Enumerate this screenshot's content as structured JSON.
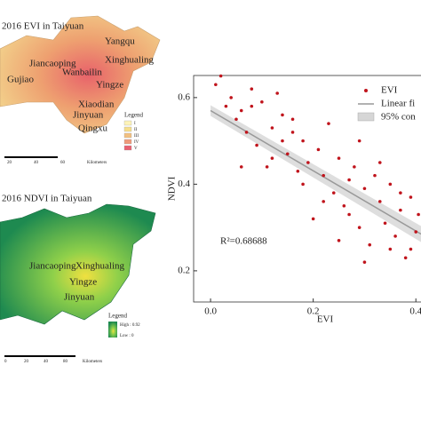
{
  "maps": {
    "evi": {
      "title": "2016 EVI in Taiyuan",
      "places": [
        "Gujiao",
        "Jiancaoping",
        "Yangqu",
        "Xinghualing",
        "Wanbailin",
        "Yingze",
        "Xiaodian",
        "Jinyuan",
        "Qingxu"
      ],
      "legend_title": "Legend",
      "legend_items": [
        "I",
        "II",
        "III",
        "IV",
        "V"
      ],
      "scale": [
        "20",
        "40",
        "60",
        "Kilometers"
      ]
    },
    "ndvi": {
      "title": "2016 NDVI in Taiyuan",
      "places": [
        "Jiancaoping",
        "Xinghualing",
        "Yingze",
        "Jinyuan"
      ],
      "legend_title": "Legend",
      "legend_items": [
        "High : 0.92",
        "Low : 0"
      ],
      "scale": [
        "0",
        "20",
        "40",
        "80",
        "Kilometers"
      ]
    }
  },
  "chart_data": {
    "type": "scatter",
    "x_label": "EVI",
    "y_label": "NDVI",
    "annotation": "R²=0.68688",
    "xlim": [
      -0.033,
      0.41
    ],
    "ylim": [
      0.128,
      0.651
    ],
    "xticks": [
      {
        "value": 0,
        "label": "0.0"
      },
      0.2,
      0.4
    ],
    "yticks": [
      0.2,
      0.4,
      0.6
    ],
    "series": [
      {
        "name": "EVI",
        "color": "#c0141c",
        "x": [
          0.01,
          0.02,
          0.03,
          0.04,
          0.05,
          0.06,
          0.07,
          0.08,
          0.09,
          0.1,
          0.11,
          0.12,
          0.13,
          0.14,
          0.15,
          0.16,
          0.17,
          0.18,
          0.19,
          0.2,
          0.21,
          0.22,
          0.23,
          0.24,
          0.25,
          0.26,
          0.27,
          0.28,
          0.29,
          0.3,
          0.31,
          0.32,
          0.33,
          0.34,
          0.35,
          0.36,
          0.37,
          0.38,
          0.39,
          0.4,
          0.405,
          0.35,
          0.3,
          0.25,
          0.22,
          0.18,
          0.12,
          0.08,
          0.14,
          0.27,
          0.33,
          0.37,
          0.39,
          0.29,
          0.16,
          0.06
        ],
        "values": [
          0.63,
          0.65,
          0.58,
          0.6,
          0.55,
          0.57,
          0.52,
          0.62,
          0.49,
          0.59,
          0.44,
          0.53,
          0.61,
          0.5,
          0.47,
          0.55,
          0.43,
          0.5,
          0.45,
          0.32,
          0.48,
          0.42,
          0.54,
          0.38,
          0.46,
          0.35,
          0.41,
          0.44,
          0.3,
          0.39,
          0.26,
          0.42,
          0.36,
          0.31,
          0.4,
          0.28,
          0.34,
          0.23,
          0.37,
          0.29,
          0.33,
          0.25,
          0.22,
          0.27,
          0.36,
          0.4,
          0.46,
          0.58,
          0.56,
          0.33,
          0.45,
          0.38,
          0.25,
          0.5,
          0.52,
          0.44
        ]
      },
      {
        "name": "Linear fi",
        "color": "#999999",
        "x": [
          0,
          0.41
        ],
        "values": [
          0.57,
          0.285
        ]
      },
      {
        "name": "95% con",
        "color": "#d6d6d6"
      }
    ]
  }
}
